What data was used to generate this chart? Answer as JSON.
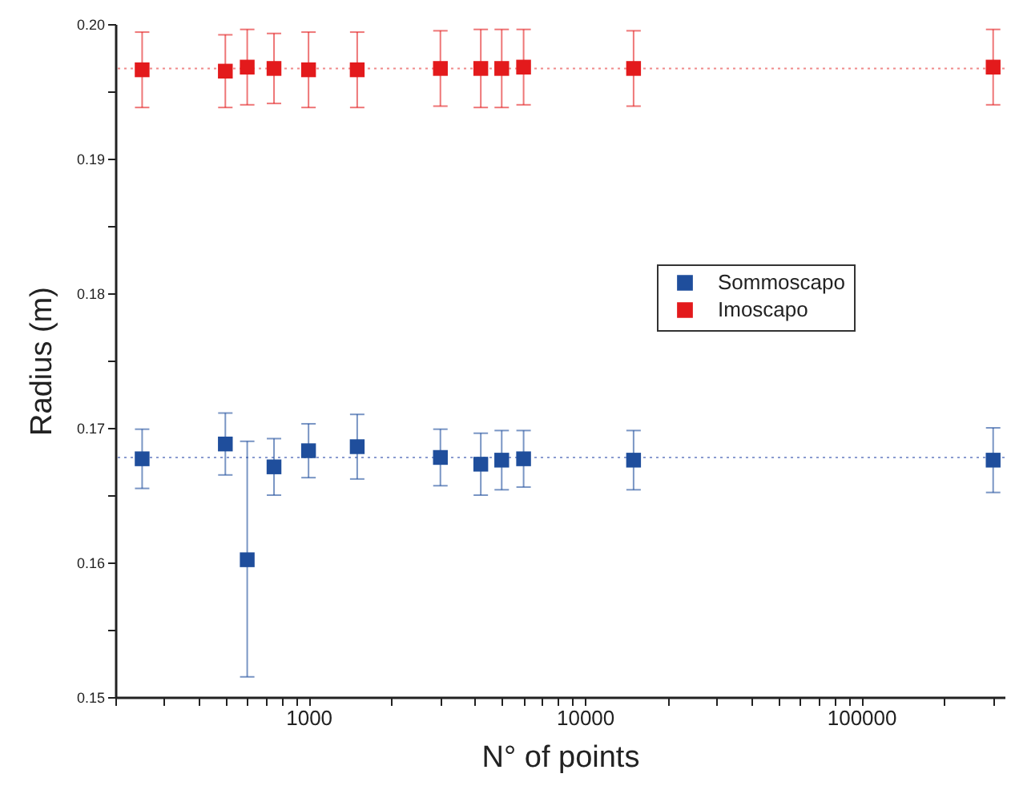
{
  "chart_data": {
    "type": "scatter",
    "xlabel": "N° of points",
    "ylabel": "Radius (m)",
    "log": "x",
    "marker": "square",
    "grid": false,
    "legend": "right",
    "xlim": [
      200,
      330000
    ],
    "xticks": [
      {
        "value": 200,
        "label": null
      },
      {
        "value": 300,
        "label": null
      },
      {
        "value": 400,
        "label": null
      },
      {
        "value": 500,
        "label": null
      },
      {
        "value": 600,
        "label": null
      },
      {
        "value": 700,
        "label": null
      },
      {
        "value": 800,
        "label": null
      },
      {
        "value": 900,
        "label": null
      },
      1000,
      {
        "value": 2000,
        "label": null
      },
      {
        "value": 3000,
        "label": null
      },
      {
        "value": 4000,
        "label": null
      },
      {
        "value": 5000,
        "label": null
      },
      {
        "value": 6000,
        "label": null
      },
      {
        "value": 7000,
        "label": null
      },
      {
        "value": 8000,
        "label": null
      },
      {
        "value": 9000,
        "label": null
      },
      10000,
      {
        "value": 20000,
        "label": null
      },
      {
        "value": 30000,
        "label": null
      },
      {
        "value": 40000,
        "label": null
      },
      {
        "value": 50000,
        "label": null
      },
      {
        "value": 60000,
        "label": null
      },
      {
        "value": 70000,
        "label": null
      },
      {
        "value": 80000,
        "label": null
      },
      {
        "value": 90000,
        "label": null
      },
      100000,
      {
        "value": 200000,
        "label": null
      },
      {
        "value": 300000,
        "label": null
      }
    ],
    "ylim": [
      0.15,
      0.2
    ],
    "yticks": [
      0.15,
      {
        "value": 0.155,
        "label": null
      },
      0.16,
      {
        "value": 0.165,
        "label": null
      },
      0.17,
      {
        "value": 0.175,
        "label": null
      },
      0.18,
      {
        "value": 0.185,
        "label": null
      },
      0.19,
      {
        "value": 0.195,
        "label": null
      },
      {
        "value": 0.2,
        "label": "0.20"
      }
    ],
    "x": [
      250,
      500,
      600,
      750,
      1000,
      1500,
      3000,
      4200,
      5000,
      6000,
      15000,
      300000
    ],
    "series": [
      {
        "name": "Sommoscapo",
        "color": "#1f4e9c",
        "values": [
          0.1677,
          0.1688,
          0.1602,
          0.1671,
          0.1683,
          0.1686,
          0.1678,
          0.1673,
          0.1676,
          0.1677,
          0.1676,
          0.1676
        ],
        "errors": [
          0.0022,
          0.0023,
          [
            0.1515,
            0.169
          ],
          0.0021,
          0.002,
          0.0024,
          0.0021,
          0.0023,
          0.0022,
          0.0021,
          0.0022,
          0.0024
        ]
      },
      {
        "name": "Imoscapo",
        "color": "#e31a1c",
        "values": [
          0.1966,
          0.1965,
          0.1968,
          0.1967,
          0.1966,
          0.1966,
          0.1967,
          0.1967,
          0.1967,
          0.1968,
          0.1967,
          0.1968
        ],
        "errors": [
          0.0028,
          0.0027,
          0.0028,
          0.0026,
          0.0028,
          0.0028,
          0.0028,
          0.0029,
          0.0029,
          0.0028,
          0.0028,
          0.0028
        ]
      }
    ],
    "ref_lines": [
      {
        "axis": "y",
        "value": 0.1678,
        "color": "#8a9bd0",
        "line_style": "dotted"
      },
      {
        "axis": "y",
        "value": 0.1967,
        "color": "#f08a8a",
        "line_style": "dotted"
      }
    ]
  }
}
